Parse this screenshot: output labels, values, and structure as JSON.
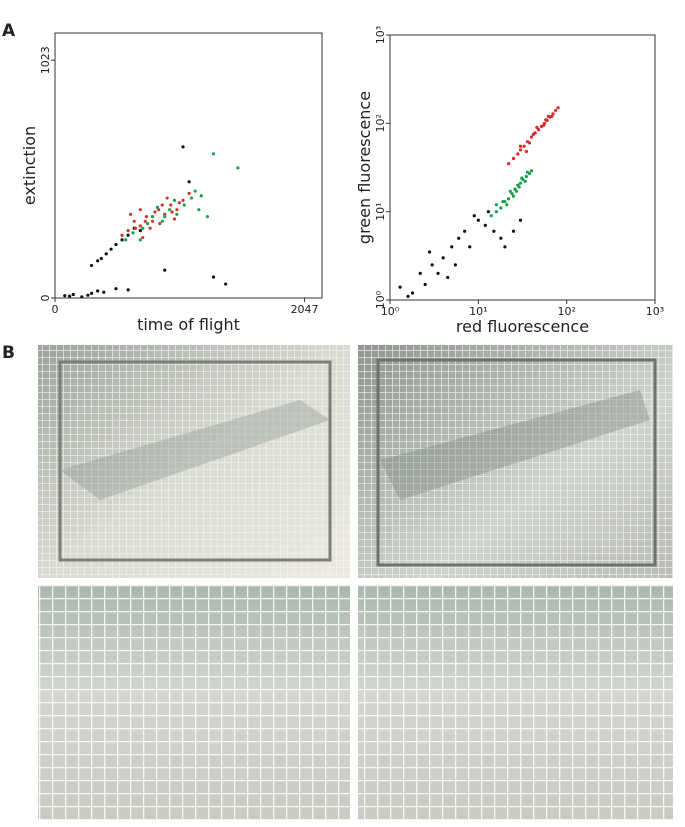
{
  "panel_labels": [
    "A",
    "B"
  ],
  "chart_data": [
    {
      "type": "scatter",
      "x_label": "time of flight",
      "y_label": "extinction",
      "xlim": [
        0,
        2190
      ],
      "ylim": [
        0,
        1140
      ],
      "xticks": [
        0,
        2047
      ],
      "yticks": [
        0,
        1023
      ],
      "series": [
        {
          "color": "#111111",
          "x": [
            80,
            150,
            220,
            300,
            120,
            350,
            400,
            270,
            500,
            600,
            350,
            420,
            500,
            380,
            460,
            550,
            600,
            300,
            650,
            700,
            1100,
            900,
            1400,
            1300,
            1050
          ],
          "values": [
            10,
            15,
            5,
            20,
            8,
            30,
            25,
            12,
            40,
            35,
            160,
            190,
            230,
            170,
            210,
            250,
            270,
            140,
            300,
            290,
            500,
            120,
            60,
            90,
            650
          ]
        },
        {
          "color": "#d8342a",
          "x": [
            600,
            650,
            700,
            750,
            800,
            850,
            900,
            950,
            1000,
            1050,
            550,
            620,
            700,
            780,
            860,
            920,
            980,
            720,
            880,
            1100,
            660,
            740,
            820,
            960,
            1020
          ],
          "values": [
            290,
            330,
            310,
            350,
            330,
            380,
            360,
            400,
            380,
            420,
            270,
            360,
            380,
            300,
            320,
            430,
            340,
            260,
            400,
            450,
            300,
            330,
            370,
            370,
            410
          ]
        },
        {
          "color": "#1aa44a",
          "x": [
            640,
            720,
            800,
            880,
            940,
            1000,
            1060,
            1120,
            760,
            840,
            900,
            980,
            1150,
            1200,
            1500,
            1300,
            1250,
            700,
            580,
            1180
          ],
          "values": [
            280,
            300,
            350,
            330,
            380,
            360,
            400,
            430,
            320,
            390,
            350,
            420,
            460,
            440,
            560,
            620,
            350,
            250,
            250,
            380
          ]
        }
      ]
    },
    {
      "type": "scatter",
      "x_label": "red fluorescence",
      "y_label": "green fluorescence",
      "xscale": "log",
      "yscale": "log",
      "xlim": [
        1,
        1000
      ],
      "ylim": [
        1,
        1000
      ],
      "xticks": [
        {
          "value": 1,
          "label": "10⁰"
        },
        {
          "value": 10,
          "label": "10¹"
        },
        {
          "value": 100,
          "label": "10²"
        },
        {
          "value": 1000,
          "label": "10³"
        }
      ],
      "yticks": [
        {
          "value": 1,
          "label": "10⁰"
        },
        {
          "value": 10,
          "label": "10¹"
        },
        {
          "value": 100,
          "label": "10²"
        },
        {
          "value": 1000,
          "label": "10³"
        }
      ],
      "series": [
        {
          "color": "#111111",
          "x": [
            1.3,
            1.8,
            2.2,
            3,
            2.5,
            4,
            5,
            3.5,
            6,
            7,
            8,
            10,
            12,
            15,
            18,
            20,
            25,
            30,
            4.5,
            9,
            1.6,
            13,
            5.5,
            2.8
          ],
          "values": [
            1.4,
            1.2,
            2,
            2.5,
            1.5,
            3,
            4,
            2,
            5,
            6,
            4,
            8,
            7,
            6,
            5,
            4,
            6,
            8,
            1.8,
            9,
            1.1,
            10,
            2.5,
            3.5
          ]
        },
        {
          "color": "#e0262a",
          "x": [
            22,
            25,
            28,
            30,
            33,
            36,
            40,
            44,
            48,
            52,
            56,
            60,
            65,
            70,
            75,
            80,
            30,
            38,
            46,
            55,
            62,
            42,
            35,
            58,
            68
          ],
          "values": [
            35,
            40,
            45,
            50,
            55,
            62,
            70,
            78,
            85,
            92,
            100,
            108,
            118,
            128,
            140,
            150,
            55,
            60,
            90,
            95,
            120,
            75,
            48,
            110,
            120
          ]
        },
        {
          "color": "#14a04a",
          "x": [
            14,
            16,
            18,
            20,
            22,
            24,
            26,
            28,
            30,
            32,
            35,
            38,
            40,
            16,
            19,
            23,
            27,
            31,
            25,
            21,
            34,
            29,
            36
          ],
          "values": [
            9,
            10,
            11,
            13,
            14,
            16,
            18,
            20,
            21,
            23,
            25,
            27,
            29,
            12,
            13,
            17,
            17,
            24,
            15,
            12,
            22,
            19,
            28
          ]
        }
      ]
    }
  ]
}
